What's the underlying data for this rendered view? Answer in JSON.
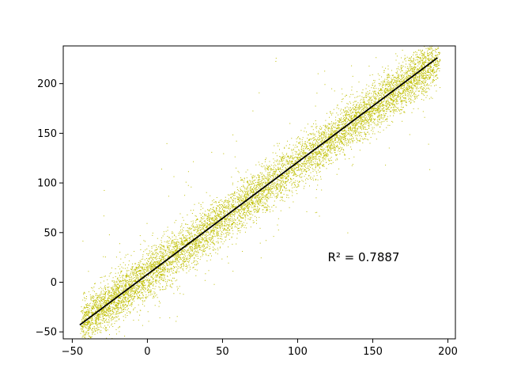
{
  "chart_data": {
    "type": "scatter",
    "title": "",
    "xlabel": "",
    "ylabel": "",
    "xlim": [
      -56,
      205
    ],
    "ylim": [
      -57,
      238
    ],
    "xticks": [
      -50,
      0,
      50,
      100,
      150,
      200
    ],
    "yticks": [
      -50,
      0,
      50,
      100,
      150,
      200
    ],
    "grid": false,
    "legend": "none",
    "point_color": "#bfbf00",
    "line_color": "#000000",
    "scatter_trend": {
      "slope": 1.12,
      "intercept": 8,
      "x_range": [
        -45,
        195
      ],
      "spread_sd": 12,
      "point_count": 9000
    },
    "fit_line": {
      "x": [
        -45,
        193
      ],
      "y": [
        -43,
        226
      ]
    },
    "annotation": {
      "text": "R² = 0.7887",
      "x": 120,
      "y": 21
    }
  }
}
